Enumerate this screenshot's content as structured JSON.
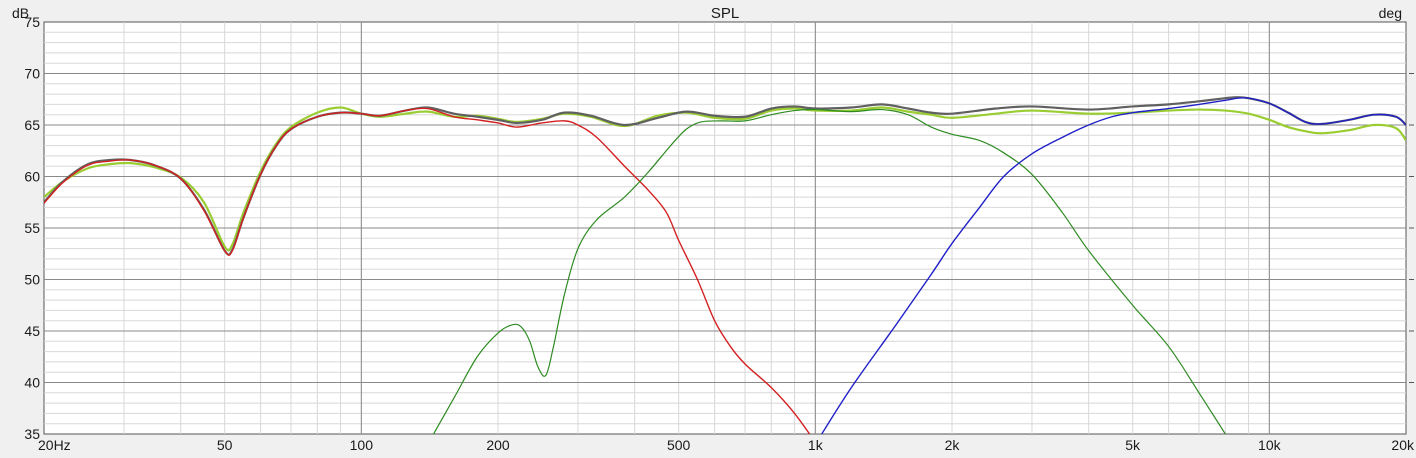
{
  "chart_data": {
    "type": "line",
    "title": "SPL",
    "y_unit": "dB",
    "y2_unit": "deg",
    "x_scale": "log",
    "xlim": [
      20,
      20000
    ],
    "ylim": [
      35,
      75
    ],
    "grid": true,
    "x_ticks": [
      {
        "value": 20,
        "label": "20Hz"
      },
      {
        "value": 50,
        "label": "50"
      },
      {
        "value": 100,
        "label": "100"
      },
      {
        "value": 200,
        "label": "200"
      },
      {
        "value": 500,
        "label": "500"
      },
      {
        "value": 1000,
        "label": "1k"
      },
      {
        "value": 2000,
        "label": "2k"
      },
      {
        "value": 5000,
        "label": "5k"
      },
      {
        "value": 10000,
        "label": "10k"
      },
      {
        "value": 20000,
        "label": "20k"
      }
    ],
    "y_ticks": [
      35,
      40,
      45,
      50,
      55,
      60,
      65,
      70,
      75
    ],
    "series": [
      {
        "color": "#9acd32",
        "width": 2.2,
        "points": [
          [
            20,
            58
          ],
          [
            22,
            59.5
          ],
          [
            25,
            60.8
          ],
          [
            28,
            61.2
          ],
          [
            31,
            61.3
          ],
          [
            35,
            60.9
          ],
          [
            40,
            59.9
          ],
          [
            45,
            57.5
          ],
          [
            50,
            53.2
          ],
          [
            52,
            53.4
          ],
          [
            55,
            56.5
          ],
          [
            60,
            60.5
          ],
          [
            65,
            63.2
          ],
          [
            70,
            64.8
          ],
          [
            80,
            66.2
          ],
          [
            90,
            66.7
          ],
          [
            100,
            66.1
          ],
          [
            110,
            65.8
          ],
          [
            125,
            66.1
          ],
          [
            140,
            66.3
          ],
          [
            160,
            65.8
          ],
          [
            180,
            65.9
          ],
          [
            200,
            65.6
          ],
          [
            220,
            65.3
          ],
          [
            250,
            65.6
          ],
          [
            280,
            66.1
          ],
          [
            320,
            65.8
          ],
          [
            380,
            64.9
          ],
          [
            450,
            65.9
          ],
          [
            520,
            66.2
          ],
          [
            600,
            65.7
          ],
          [
            700,
            65.6
          ],
          [
            800,
            66.4
          ],
          [
            900,
            66.6
          ],
          [
            1000,
            66.4
          ],
          [
            1200,
            66.4
          ],
          [
            1400,
            66.7
          ],
          [
            1600,
            66.3
          ],
          [
            1800,
            66
          ],
          [
            2000,
            65.7
          ],
          [
            2500,
            66.1
          ],
          [
            3000,
            66.4
          ],
          [
            4000,
            66.1
          ],
          [
            5000,
            66.2
          ],
          [
            6000,
            66.4
          ],
          [
            7000,
            66.5
          ],
          [
            8000,
            66.4
          ],
          [
            9000,
            66.1
          ],
          [
            10000,
            65.5
          ],
          [
            11000,
            64.8
          ],
          [
            12000,
            64.4
          ],
          [
            13000,
            64.2
          ],
          [
            15000,
            64.5
          ],
          [
            17000,
            65
          ],
          [
            19000,
            64.7
          ],
          [
            20000,
            63.5
          ]
        ]
      },
      {
        "color": "#606060",
        "width": 2.2,
        "points": [
          [
            20,
            57.5
          ],
          [
            22,
            59.5
          ],
          [
            25,
            61.2
          ],
          [
            28,
            61.6
          ],
          [
            31,
            61.6
          ],
          [
            35,
            61.1
          ],
          [
            40,
            59.8
          ],
          [
            45,
            56.8
          ],
          [
            50,
            52.8
          ],
          [
            52,
            52.9
          ],
          [
            55,
            56
          ],
          [
            60,
            60.2
          ],
          [
            65,
            63
          ],
          [
            70,
            64.6
          ],
          [
            80,
            65.8
          ],
          [
            90,
            66.2
          ],
          [
            100,
            66.1
          ],
          [
            110,
            65.9
          ],
          [
            125,
            66.4
          ],
          [
            140,
            66.7
          ],
          [
            160,
            66.1
          ],
          [
            180,
            65.8
          ],
          [
            200,
            65.5
          ],
          [
            220,
            65.2
          ],
          [
            250,
            65.5
          ],
          [
            280,
            66.2
          ],
          [
            320,
            65.9
          ],
          [
            380,
            65
          ],
          [
            450,
            65.7
          ],
          [
            520,
            66.3
          ],
          [
            600,
            65.9
          ],
          [
            700,
            65.8
          ],
          [
            800,
            66.6
          ],
          [
            900,
            66.8
          ],
          [
            1000,
            66.6
          ],
          [
            1200,
            66.7
          ],
          [
            1400,
            67
          ],
          [
            1600,
            66.6
          ],
          [
            1800,
            66.2
          ],
          [
            2000,
            66.1
          ],
          [
            2500,
            66.6
          ],
          [
            3000,
            66.8
          ],
          [
            4000,
            66.5
          ],
          [
            5000,
            66.8
          ],
          [
            6000,
            67
          ],
          [
            7000,
            67.3
          ],
          [
            8000,
            67.6
          ],
          [
            8500,
            67.7
          ],
          [
            9000,
            67.6
          ],
          [
            10000,
            67.1
          ],
          [
            11000,
            66.2
          ],
          [
            12000,
            65.3
          ],
          [
            13000,
            65.1
          ],
          [
            15000,
            65.5
          ],
          [
            17000,
            66
          ],
          [
            19000,
            65.8
          ],
          [
            20000,
            65
          ]
        ]
      },
      {
        "color": "#d42020",
        "width": 1.4,
        "points": [
          [
            20,
            57.4
          ],
          [
            22,
            59.4
          ],
          [
            25,
            61.1
          ],
          [
            28,
            61.5
          ],
          [
            31,
            61.6
          ],
          [
            35,
            61.1
          ],
          [
            40,
            59.8
          ],
          [
            45,
            56.7
          ],
          [
            50,
            52.8
          ],
          [
            52,
            52.8
          ],
          [
            55,
            56
          ],
          [
            60,
            60.2
          ],
          [
            65,
            63
          ],
          [
            70,
            64.6
          ],
          [
            80,
            65.8
          ],
          [
            90,
            66.2
          ],
          [
            100,
            66.1
          ],
          [
            110,
            65.9
          ],
          [
            125,
            66.4
          ],
          [
            140,
            66.6
          ],
          [
            160,
            65.8
          ],
          [
            180,
            65.5
          ],
          [
            200,
            65.2
          ],
          [
            220,
            64.8
          ],
          [
            250,
            65.2
          ],
          [
            280,
            65.4
          ],
          [
            300,
            65
          ],
          [
            330,
            63.8
          ],
          [
            380,
            61
          ],
          [
            430,
            58.6
          ],
          [
            470,
            56.5
          ],
          [
            500,
            53.8
          ],
          [
            550,
            50
          ],
          [
            600,
            46
          ],
          [
            650,
            43.5
          ],
          [
            700,
            41.8
          ],
          [
            800,
            39.5
          ],
          [
            900,
            37
          ],
          [
            1000,
            34.2
          ]
        ]
      },
      {
        "color": "#2e8b22",
        "width": 1.2,
        "points": [
          [
            140,
            34
          ],
          [
            160,
            38.5
          ],
          [
            180,
            42.5
          ],
          [
            200,
            44.8
          ],
          [
            215,
            45.6
          ],
          [
            225,
            45.4
          ],
          [
            235,
            44
          ],
          [
            245,
            41.5
          ],
          [
            255,
            40.7
          ],
          [
            265,
            43.5
          ],
          [
            280,
            48.5
          ],
          [
            300,
            53
          ],
          [
            330,
            55.8
          ],
          [
            380,
            58
          ],
          [
            430,
            60.5
          ],
          [
            480,
            63
          ],
          [
            520,
            64.6
          ],
          [
            560,
            65.3
          ],
          [
            620,
            65.4
          ],
          [
            700,
            65.4
          ],
          [
            800,
            66
          ],
          [
            900,
            66.4
          ],
          [
            1000,
            66.5
          ],
          [
            1200,
            66.3
          ],
          [
            1400,
            66.5
          ],
          [
            1600,
            66
          ],
          [
            1800,
            64.8
          ],
          [
            2000,
            64.1
          ],
          [
            2300,
            63.5
          ],
          [
            2600,
            62.3
          ],
          [
            3000,
            60.2
          ],
          [
            3500,
            56.5
          ],
          [
            4000,
            52.8
          ],
          [
            5000,
            47.5
          ],
          [
            6000,
            43.5
          ],
          [
            7000,
            39
          ],
          [
            8000,
            35
          ],
          [
            8300,
            34
          ]
        ]
      },
      {
        "color": "#2020c8",
        "width": 1.4,
        "points": [
          [
            1000,
            34
          ],
          [
            1200,
            39.5
          ],
          [
            1500,
            45.5
          ],
          [
            1800,
            50.5
          ],
          [
            2000,
            53.5
          ],
          [
            2300,
            57
          ],
          [
            2600,
            60
          ],
          [
            3000,
            62.2
          ],
          [
            3500,
            63.8
          ],
          [
            4000,
            65
          ],
          [
            4500,
            65.8
          ],
          [
            5000,
            66.2
          ],
          [
            6000,
            66.6
          ],
          [
            7000,
            67
          ],
          [
            8000,
            67.4
          ],
          [
            8500,
            67.6
          ],
          [
            9000,
            67.6
          ],
          [
            10000,
            67.1
          ],
          [
            11000,
            66.2
          ],
          [
            12000,
            65.3
          ],
          [
            13000,
            65.1
          ],
          [
            15000,
            65.5
          ],
          [
            17000,
            66
          ],
          [
            19000,
            65.8
          ],
          [
            20000,
            65
          ]
        ]
      }
    ]
  }
}
